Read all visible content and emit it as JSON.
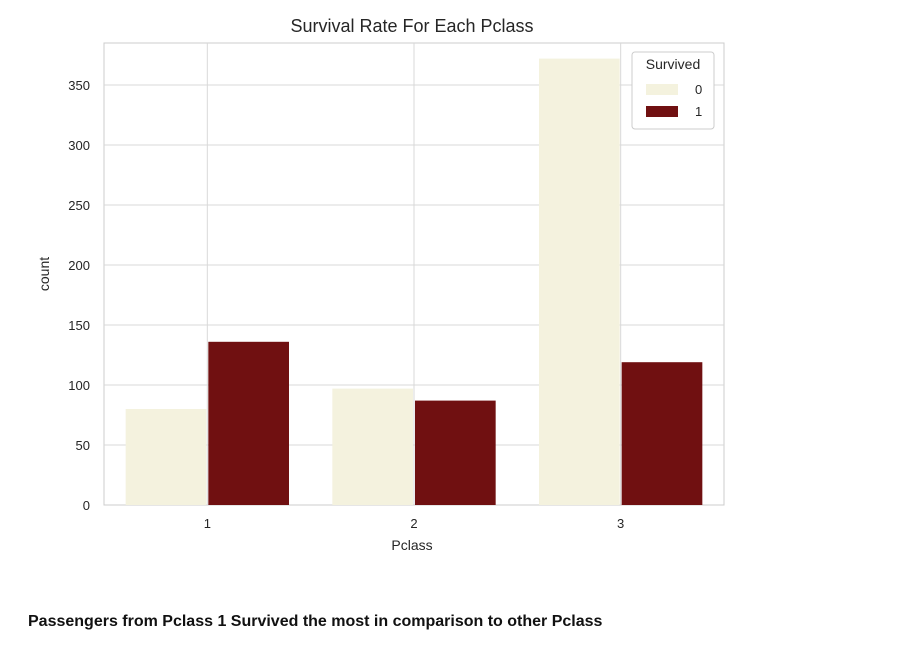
{
  "chart_data": {
    "type": "bar",
    "title": "Survival Rate For Each Pclass",
    "xlabel": "Pclass",
    "ylabel": "count",
    "categories": [
      "1",
      "2",
      "3"
    ],
    "yticks": [
      "0",
      "50",
      "100",
      "150",
      "200",
      "250",
      "300",
      "350"
    ],
    "ylim": [
      0,
      385
    ],
    "grid": true,
    "legend": {
      "title": "Survived",
      "placement": "top-right"
    },
    "series": [
      {
        "name": "0",
        "values": [
          80,
          97,
          372
        ],
        "color": "#f4f2de"
      },
      {
        "name": "1",
        "values": [
          136,
          87,
          119
        ],
        "color": "#701011"
      }
    ]
  },
  "caption": "Passengers from Pclass 1 Survived the most in comparison to other Pclass"
}
